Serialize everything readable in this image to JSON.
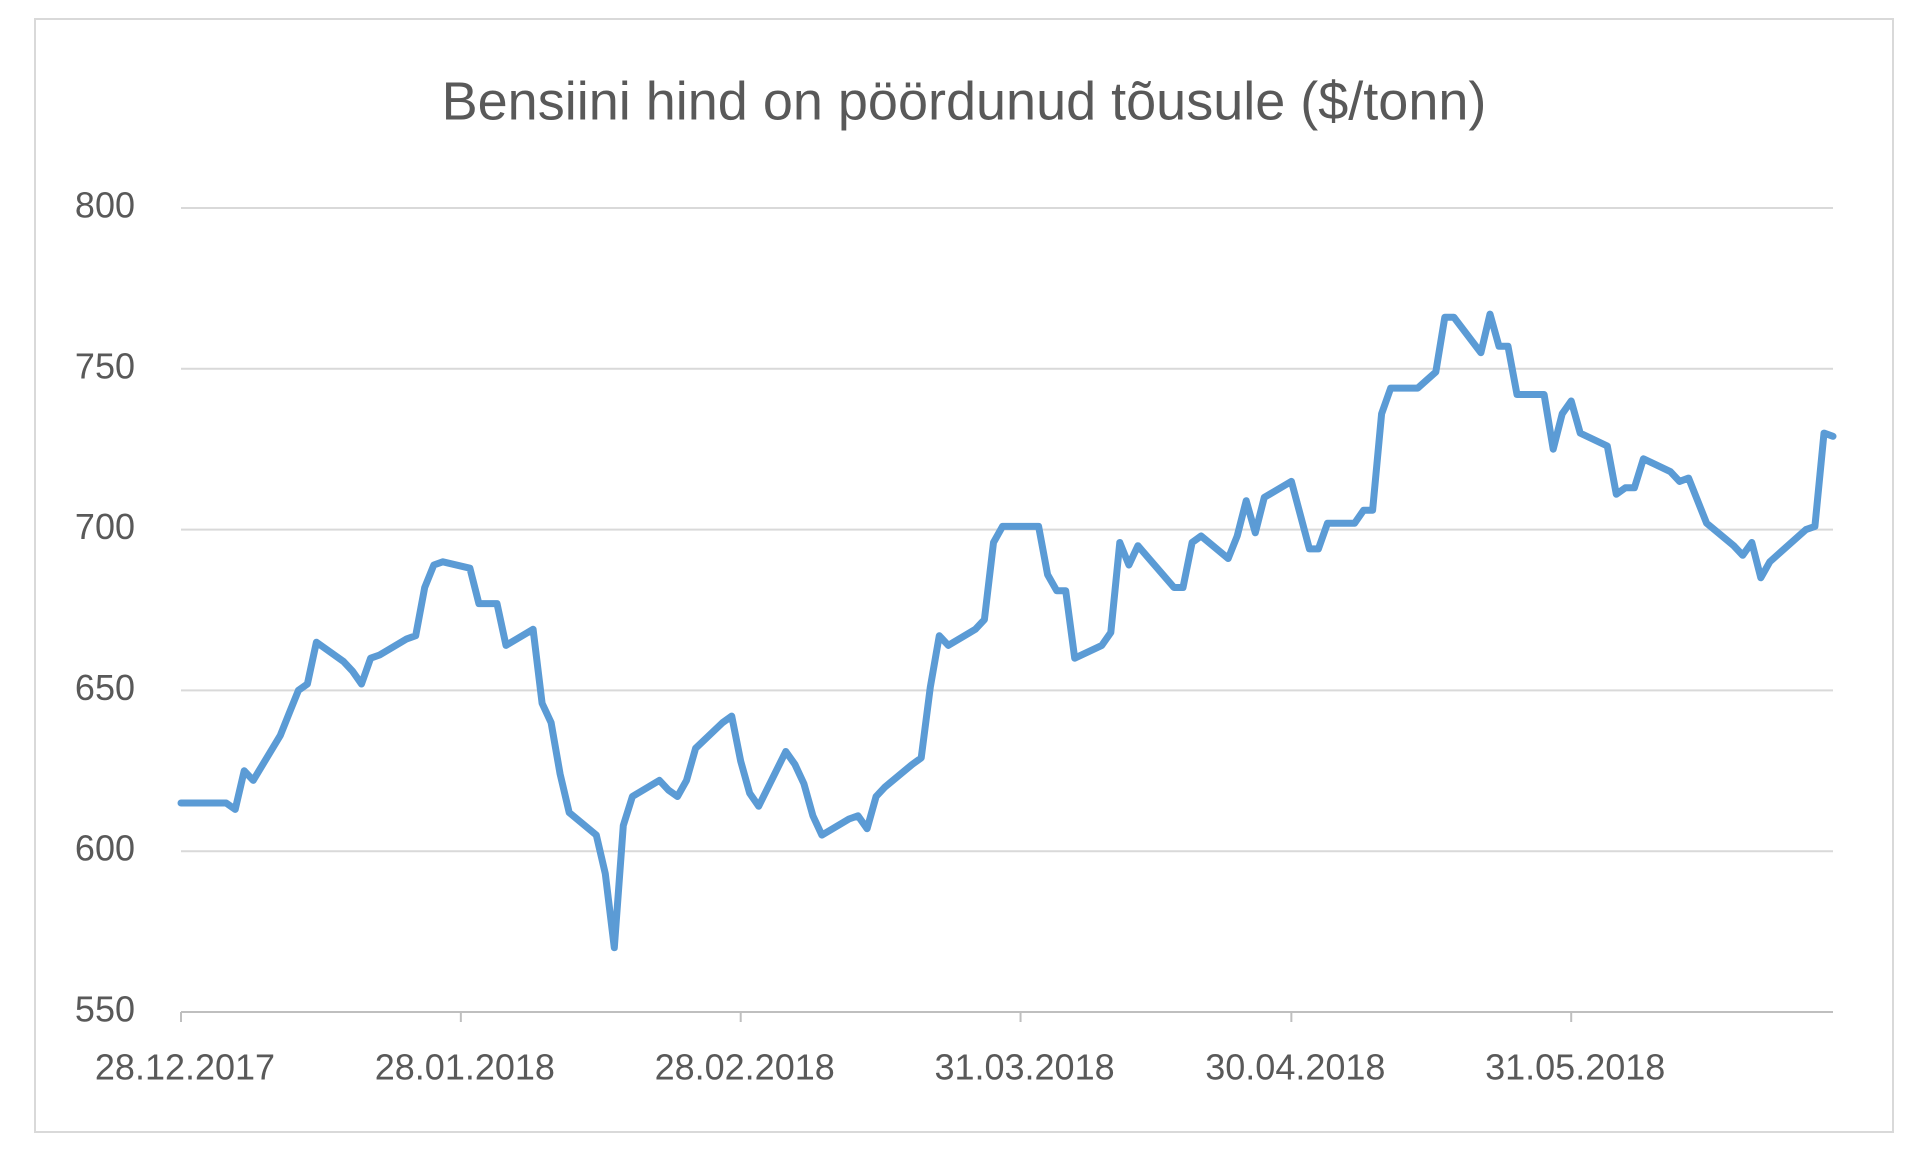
{
  "chart_data": {
    "type": "line",
    "title": "Bensiini hind on pöördunud tõusule ($/tonn)",
    "x": [
      "2017-12-28",
      "2017-12-29",
      "2018-01-02",
      "2018-01-03",
      "2018-01-04",
      "2018-01-05",
      "2018-01-08",
      "2018-01-09",
      "2018-01-10",
      "2018-01-11",
      "2018-01-12",
      "2018-01-15",
      "2018-01-16",
      "2018-01-17",
      "2018-01-18",
      "2018-01-19",
      "2018-01-22",
      "2018-01-23",
      "2018-01-24",
      "2018-01-25",
      "2018-01-26",
      "2018-01-29",
      "2018-01-30",
      "2018-01-31",
      "2018-02-01",
      "2018-02-02",
      "2018-02-05",
      "2018-02-06",
      "2018-02-07",
      "2018-02-08",
      "2018-02-09",
      "2018-02-12",
      "2018-02-13",
      "2018-02-14",
      "2018-02-15",
      "2018-02-16",
      "2018-02-19",
      "2018-02-20",
      "2018-02-21",
      "2018-02-22",
      "2018-02-23",
      "2018-02-26",
      "2018-02-27",
      "2018-02-28",
      "2018-03-01",
      "2018-03-02",
      "2018-03-05",
      "2018-03-06",
      "2018-03-07",
      "2018-03-08",
      "2018-03-09",
      "2018-03-12",
      "2018-03-13",
      "2018-03-14",
      "2018-03-15",
      "2018-03-16",
      "2018-03-19",
      "2018-03-20",
      "2018-03-21",
      "2018-03-22",
      "2018-03-23",
      "2018-03-26",
      "2018-03-27",
      "2018-03-28",
      "2018-03-29",
      "2018-04-02",
      "2018-04-03",
      "2018-04-04",
      "2018-04-05",
      "2018-04-06",
      "2018-04-09",
      "2018-04-10",
      "2018-04-11",
      "2018-04-12",
      "2018-04-13",
      "2018-04-17",
      "2018-04-18",
      "2018-04-19",
      "2018-04-20",
      "2018-04-23",
      "2018-04-24",
      "2018-04-25",
      "2018-04-26",
      "2018-04-27",
      "2018-04-30",
      "2018-05-02",
      "2018-05-03",
      "2018-05-04",
      "2018-05-07",
      "2018-05-08",
      "2018-05-09",
      "2018-05-10",
      "2018-05-11",
      "2018-05-14",
      "2018-05-16",
      "2018-05-17",
      "2018-05-18",
      "2018-05-21",
      "2018-05-22",
      "2018-05-23",
      "2018-05-24",
      "2018-05-25",
      "2018-05-28",
      "2018-05-29",
      "2018-05-30",
      "2018-05-31",
      "2018-06-01",
      "2018-06-04",
      "2018-06-05",
      "2018-06-06",
      "2018-06-07",
      "2018-06-08",
      "2018-06-11",
      "2018-06-12",
      "2018-06-13",
      "2018-06-15",
      "2018-06-18",
      "2018-06-19",
      "2018-06-20",
      "2018-06-21",
      "2018-06-22",
      "2018-06-26",
      "2018-06-27",
      "2018-06-28",
      "2018-06-29"
    ],
    "values": [
      615,
      615,
      615,
      613,
      625,
      622,
      636,
      643,
      650,
      652,
      665,
      659,
      656,
      652,
      660,
      661,
      666,
      667,
      682,
      689,
      690,
      688,
      677,
      677,
      677,
      664,
      669,
      646,
      640,
      624,
      612,
      605,
      593,
      570,
      608,
      617,
      622,
      619,
      617,
      622,
      632,
      640,
      642,
      628,
      618,
      614,
      631,
      627,
      621,
      611,
      605,
      610,
      611,
      607,
      617,
      620,
      627,
      629,
      651,
      667,
      664,
      669,
      672,
      696,
      701,
      701,
      686,
      681,
      681,
      660,
      664,
      668,
      696,
      689,
      695,
      682,
      682,
      696,
      698,
      691,
      698,
      709,
      699,
      710,
      715,
      694,
      694,
      702,
      702,
      706,
      706,
      736,
      744,
      744,
      749,
      766,
      766,
      755,
      767,
      757,
      757,
      742,
      742,
      725,
      736,
      740,
      730,
      726,
      711,
      713,
      713,
      722,
      718,
      715,
      716,
      702,
      695,
      692,
      696,
      685,
      690,
      700,
      701,
      730,
      729
    ],
    "color": "#5b9bd5",
    "xlim": [
      "2017-12-28",
      "2018-06-29"
    ],
    "xticks": [
      {
        "value": "2017-12-28",
        "label": "28.12.2017"
      },
      {
        "value": "2018-01-28",
        "label": "28.01.2018"
      },
      {
        "value": "2018-02-28",
        "label": "28.02.2018"
      },
      {
        "value": "2018-03-31",
        "label": "31.03.2018"
      },
      {
        "value": "2018-04-30",
        "label": "30.04.2018"
      },
      {
        "value": "2018-05-31",
        "label": "31.05.2018"
      }
    ],
    "ylim": [
      550,
      800
    ],
    "yticks": [
      550,
      600,
      650,
      700,
      750,
      800
    ],
    "grid": true
  }
}
